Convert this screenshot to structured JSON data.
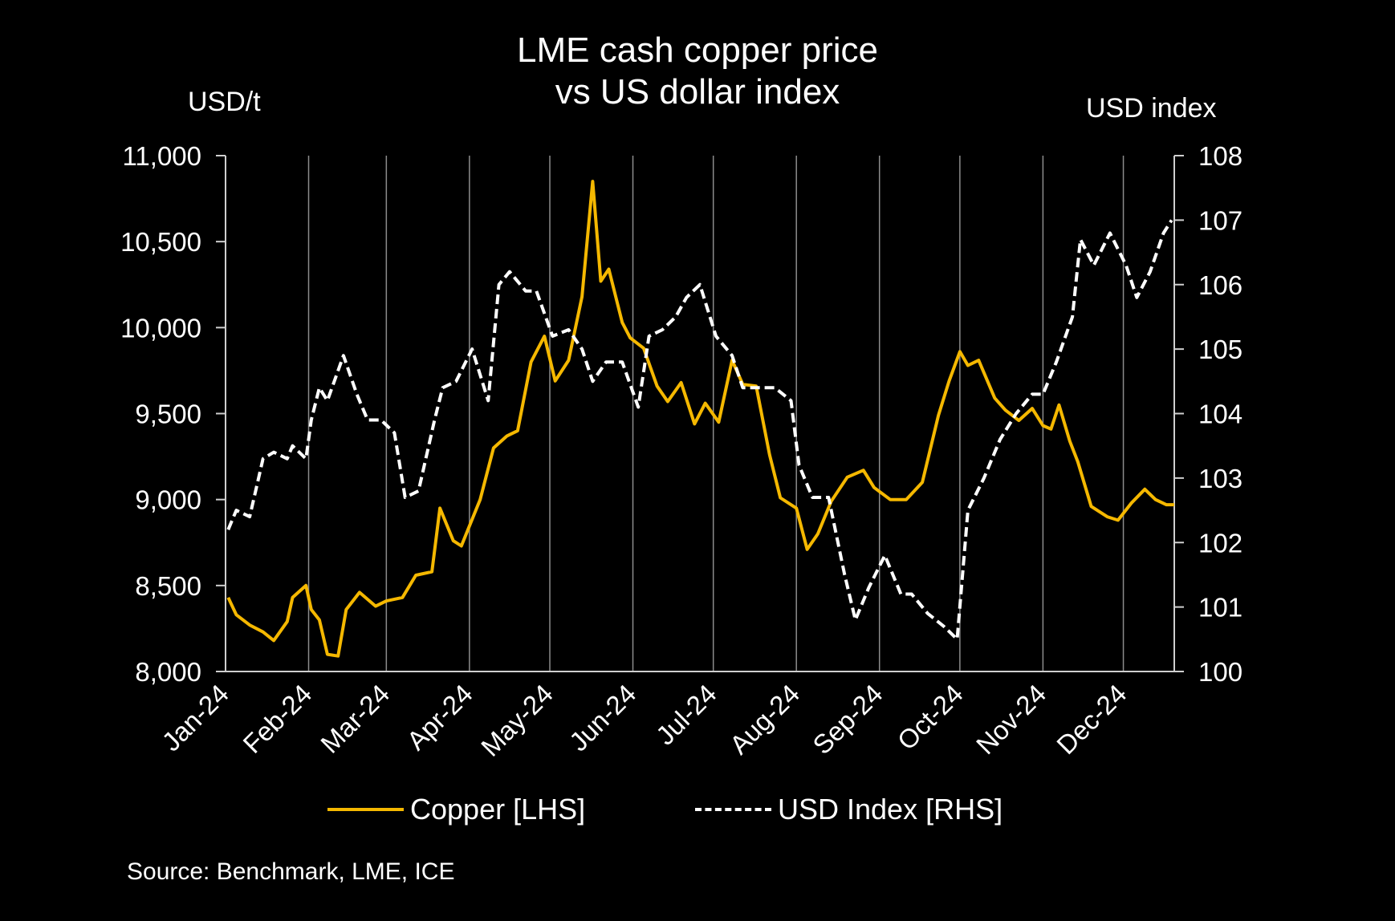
{
  "chart_data": {
    "type": "line",
    "title": "LME cash copper price",
    "subtitle": "vs US dollar index",
    "y_left_label": "USD/t",
    "y_right_label": "USD index",
    "y_left_lim": [
      8000,
      11000
    ],
    "y_left_ticks": [
      "8,000",
      "8,500",
      "9,000",
      "9,500",
      "10,000",
      "10,500",
      "11,000"
    ],
    "y_right_lim": [
      100,
      108
    ],
    "y_right_ticks": [
      "100",
      "101",
      "102",
      "103",
      "104",
      "105",
      "106",
      "107",
      "108"
    ],
    "x_ticks": [
      "Jan-24",
      "Feb-24",
      "Mar-24",
      "Apr-24",
      "May-24",
      "Jun-24",
      "Jul-24",
      "Aug-24",
      "Sep-24",
      "Oct-24",
      "Nov-24",
      "Dec-24"
    ],
    "grid": "vertical",
    "source": "Source: Benchmark, LME, ICE",
    "series": [
      {
        "name": "Copper [LHS]",
        "axis": "left",
        "color": "#F5B800",
        "style": "solid",
        "x": [
          "2024-01-02",
          "2024-01-05",
          "2024-01-10",
          "2024-01-15",
          "2024-01-19",
          "2024-01-24",
          "2024-01-26",
          "2024-01-31",
          "2024-02-02",
          "2024-02-05",
          "2024-02-08",
          "2024-02-12",
          "2024-02-15",
          "2024-02-20",
          "2024-02-26",
          "2024-03-01",
          "2024-03-07",
          "2024-03-12",
          "2024-03-18",
          "2024-03-21",
          "2024-03-26",
          "2024-03-29",
          "2024-04-05",
          "2024-04-10",
          "2024-04-15",
          "2024-04-19",
          "2024-04-24",
          "2024-04-29",
          "2024-05-03",
          "2024-05-08",
          "2024-05-13",
          "2024-05-17",
          "2024-05-20",
          "2024-05-23",
          "2024-05-28",
          "2024-05-31",
          "2024-06-05",
          "2024-06-10",
          "2024-06-14",
          "2024-06-19",
          "2024-06-24",
          "2024-06-28",
          "2024-07-03",
          "2024-07-08",
          "2024-07-12",
          "2024-07-17",
          "2024-07-22",
          "2024-07-26",
          "2024-08-01",
          "2024-08-05",
          "2024-08-09",
          "2024-08-14",
          "2024-08-20",
          "2024-08-26",
          "2024-08-30",
          "2024-09-05",
          "2024-09-11",
          "2024-09-17",
          "2024-09-23",
          "2024-09-27",
          "2024-10-01",
          "2024-10-04",
          "2024-10-08",
          "2024-10-14",
          "2024-10-18",
          "2024-10-23",
          "2024-10-28",
          "2024-11-01",
          "2024-11-04",
          "2024-11-07",
          "2024-11-11",
          "2024-11-14",
          "2024-11-19",
          "2024-11-25",
          "2024-11-29",
          "2024-12-04",
          "2024-12-09",
          "2024-12-13",
          "2024-12-17",
          "2024-12-20"
        ],
        "values": [
          8430,
          8330,
          8270,
          8230,
          8180,
          8290,
          8430,
          8500,
          8360,
          8300,
          8100,
          8090,
          8360,
          8460,
          8380,
          8410,
          8430,
          8560,
          8580,
          8950,
          8760,
          8730,
          9000,
          9300,
          9370,
          9400,
          9800,
          9950,
          9690,
          9810,
          10180,
          10850,
          10270,
          10340,
          10030,
          9940,
          9880,
          9660,
          9570,
          9680,
          9440,
          9560,
          9450,
          9810,
          9670,
          9660,
          9260,
          9010,
          8950,
          8710,
          8800,
          8990,
          9130,
          9170,
          9070,
          9000,
          9000,
          9100,
          9490,
          9690,
          9860,
          9780,
          9810,
          9590,
          9520,
          9460,
          9530,
          9430,
          9410,
          9550,
          9340,
          9220,
          8960,
          8900,
          8880,
          8980,
          9060,
          9000,
          8970,
          8970
        ]
      },
      {
        "name": "USD Index [RHS]",
        "axis": "right",
        "color": "#FFFFFF",
        "style": "dashed",
        "x": [
          "2024-01-02",
          "2024-01-05",
          "2024-01-10",
          "2024-01-15",
          "2024-01-19",
          "2024-01-24",
          "2024-01-26",
          "2024-01-31",
          "2024-02-02",
          "2024-02-05",
          "2024-02-08",
          "2024-02-14",
          "2024-02-19",
          "2024-02-23",
          "2024-02-28",
          "2024-03-04",
          "2024-03-08",
          "2024-03-13",
          "2024-03-19",
          "2024-03-22",
          "2024-03-27",
          "2024-04-02",
          "2024-04-08",
          "2024-04-12",
          "2024-04-16",
          "2024-04-22",
          "2024-04-26",
          "2024-05-02",
          "2024-05-08",
          "2024-05-13",
          "2024-05-17",
          "2024-05-22",
          "2024-05-28",
          "2024-06-03",
          "2024-06-07",
          "2024-06-12",
          "2024-06-17",
          "2024-06-21",
          "2024-06-26",
          "2024-07-02",
          "2024-07-08",
          "2024-07-12",
          "2024-07-18",
          "2024-07-24",
          "2024-07-30",
          "2024-08-02",
          "2024-08-07",
          "2024-08-13",
          "2024-08-19",
          "2024-08-23",
          "2024-08-28",
          "2024-09-03",
          "2024-09-09",
          "2024-09-13",
          "2024-09-19",
          "2024-09-25",
          "2024-09-30",
          "2024-10-04",
          "2024-10-10",
          "2024-10-16",
          "2024-10-22",
          "2024-10-28",
          "2024-11-01",
          "2024-11-06",
          "2024-11-12",
          "2024-11-15",
          "2024-11-20",
          "2024-11-26",
          "2024-12-02",
          "2024-12-06",
          "2024-12-11",
          "2024-12-16",
          "2024-12-19"
        ],
        "values": [
          102.2,
          102.5,
          102.4,
          103.3,
          103.4,
          103.3,
          103.5,
          103.3,
          103.9,
          104.4,
          104.2,
          104.9,
          104.3,
          103.9,
          103.9,
          103.7,
          102.7,
          102.8,
          103.9,
          104.4,
          104.5,
          105.0,
          104.2,
          106.0,
          106.2,
          105.9,
          105.9,
          105.2,
          105.3,
          105.0,
          104.5,
          104.8,
          104.8,
          104.1,
          105.2,
          105.3,
          105.5,
          105.8,
          106.0,
          105.2,
          104.9,
          104.4,
          104.4,
          104.4,
          104.2,
          103.2,
          102.7,
          102.7,
          101.5,
          100.8,
          101.3,
          101.8,
          101.2,
          101.2,
          100.9,
          100.7,
          100.5,
          102.5,
          103.0,
          103.6,
          104.0,
          104.3,
          104.3,
          104.8,
          105.5,
          106.7,
          106.3,
          106.8,
          106.3,
          105.8,
          106.2,
          106.8,
          107.0
        ]
      }
    ]
  }
}
